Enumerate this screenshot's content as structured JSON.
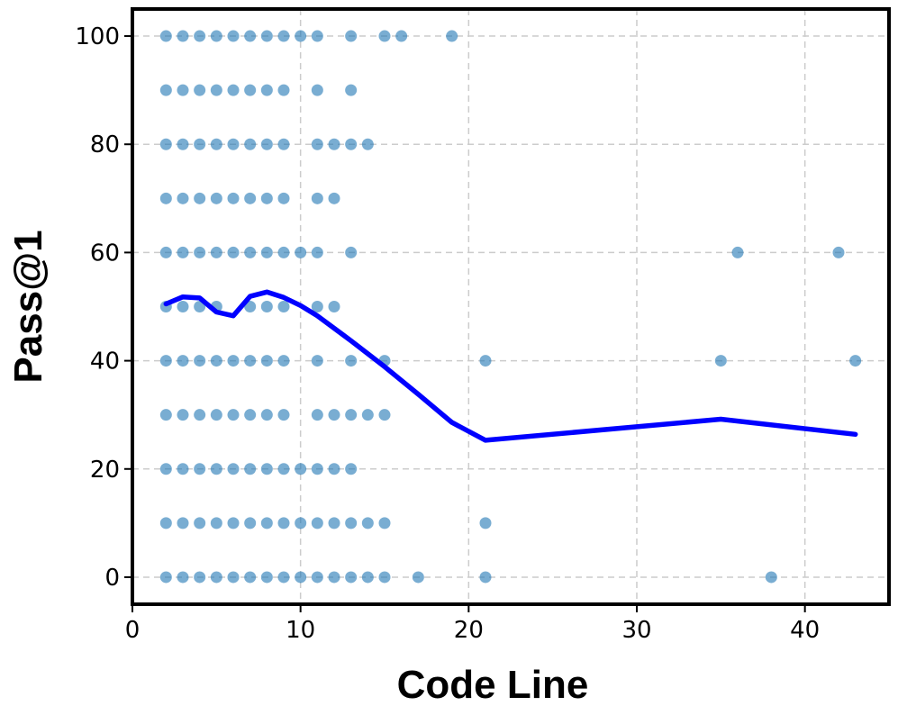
{
  "chart_data": {
    "type": "scatter",
    "xlabel": "Code Line",
    "ylabel": "Pass@1",
    "xlim": [
      0,
      45
    ],
    "ylim": [
      -5,
      105
    ],
    "xticks": [
      0,
      10,
      20,
      30,
      40
    ],
    "yticks": [
      0,
      20,
      40,
      60,
      80,
      100
    ],
    "grid": true,
    "point_color": "#1f77b4",
    "trend_color": "#0000ff",
    "series": [
      {
        "kind": "points",
        "points": [
          [
            2,
            100
          ],
          [
            3,
            100
          ],
          [
            4,
            100
          ],
          [
            5,
            100
          ],
          [
            6,
            100
          ],
          [
            7,
            100
          ],
          [
            8,
            100
          ],
          [
            9,
            100
          ],
          [
            10,
            100
          ],
          [
            11,
            100
          ],
          [
            13,
            100
          ],
          [
            15,
            100
          ],
          [
            16,
            100
          ],
          [
            19,
            100
          ],
          [
            2,
            90
          ],
          [
            3,
            90
          ],
          [
            4,
            90
          ],
          [
            5,
            90
          ],
          [
            6,
            90
          ],
          [
            7,
            90
          ],
          [
            8,
            90
          ],
          [
            9,
            90
          ],
          [
            11,
            90
          ],
          [
            13,
            90
          ],
          [
            2,
            80
          ],
          [
            3,
            80
          ],
          [
            4,
            80
          ],
          [
            5,
            80
          ],
          [
            6,
            80
          ],
          [
            7,
            80
          ],
          [
            8,
            80
          ],
          [
            9,
            80
          ],
          [
            11,
            80
          ],
          [
            12,
            80
          ],
          [
            13,
            80
          ],
          [
            14,
            80
          ],
          [
            2,
            70
          ],
          [
            3,
            70
          ],
          [
            4,
            70
          ],
          [
            5,
            70
          ],
          [
            6,
            70
          ],
          [
            7,
            70
          ],
          [
            8,
            70
          ],
          [
            9,
            70
          ],
          [
            11,
            70
          ],
          [
            12,
            70
          ],
          [
            2,
            60
          ],
          [
            3,
            60
          ],
          [
            4,
            60
          ],
          [
            5,
            60
          ],
          [
            6,
            60
          ],
          [
            7,
            60
          ],
          [
            8,
            60
          ],
          [
            9,
            60
          ],
          [
            10,
            60
          ],
          [
            11,
            60
          ],
          [
            13,
            60
          ],
          [
            36,
            60
          ],
          [
            42,
            60
          ],
          [
            2,
            50
          ],
          [
            3,
            50
          ],
          [
            4,
            50
          ],
          [
            5,
            50
          ],
          [
            7,
            50
          ],
          [
            8,
            50
          ],
          [
            9,
            50
          ],
          [
            11,
            50
          ],
          [
            12,
            50
          ],
          [
            2,
            40
          ],
          [
            3,
            40
          ],
          [
            4,
            40
          ],
          [
            5,
            40
          ],
          [
            6,
            40
          ],
          [
            7,
            40
          ],
          [
            8,
            40
          ],
          [
            9,
            40
          ],
          [
            11,
            40
          ],
          [
            13,
            40
          ],
          [
            15,
            40
          ],
          [
            21,
            40
          ],
          [
            35,
            40
          ],
          [
            43,
            40
          ],
          [
            2,
            30
          ],
          [
            3,
            30
          ],
          [
            4,
            30
          ],
          [
            5,
            30
          ],
          [
            6,
            30
          ],
          [
            7,
            30
          ],
          [
            8,
            30
          ],
          [
            9,
            30
          ],
          [
            11,
            30
          ],
          [
            12,
            30
          ],
          [
            13,
            30
          ],
          [
            14,
            30
          ],
          [
            15,
            30
          ],
          [
            2,
            20
          ],
          [
            3,
            20
          ],
          [
            4,
            20
          ],
          [
            5,
            20
          ],
          [
            6,
            20
          ],
          [
            7,
            20
          ],
          [
            8,
            20
          ],
          [
            9,
            20
          ],
          [
            10,
            20
          ],
          [
            11,
            20
          ],
          [
            12,
            20
          ],
          [
            13,
            20
          ],
          [
            2,
            10
          ],
          [
            3,
            10
          ],
          [
            4,
            10
          ],
          [
            5,
            10
          ],
          [
            6,
            10
          ],
          [
            7,
            10
          ],
          [
            8,
            10
          ],
          [
            9,
            10
          ],
          [
            10,
            10
          ],
          [
            11,
            10
          ],
          [
            12,
            10
          ],
          [
            13,
            10
          ],
          [
            14,
            10
          ],
          [
            15,
            10
          ],
          [
            21,
            10
          ],
          [
            2,
            0
          ],
          [
            3,
            0
          ],
          [
            4,
            0
          ],
          [
            5,
            0
          ],
          [
            6,
            0
          ],
          [
            7,
            0
          ],
          [
            8,
            0
          ],
          [
            9,
            0
          ],
          [
            10,
            0
          ],
          [
            11,
            0
          ],
          [
            12,
            0
          ],
          [
            13,
            0
          ],
          [
            14,
            0
          ],
          [
            15,
            0
          ],
          [
            17,
            0
          ],
          [
            21,
            0
          ],
          [
            38,
            0
          ]
        ]
      },
      {
        "kind": "trend",
        "x": [
          2,
          3,
          4,
          5,
          6,
          7,
          8,
          9,
          10,
          11,
          13,
          15,
          17,
          19,
          21,
          35,
          43
        ],
        "y": [
          50.5,
          51.8,
          51.6,
          49.0,
          48.3,
          51.9,
          52.7,
          51.7,
          50.2,
          48.3,
          43.7,
          38.9,
          33.8,
          28.6,
          25.3,
          29.2,
          26.4
        ]
      }
    ]
  }
}
